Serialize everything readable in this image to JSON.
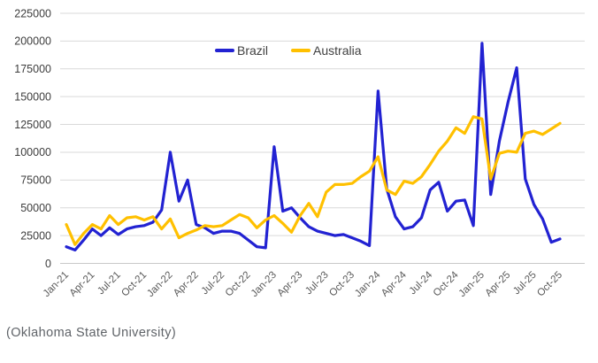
{
  "caption": "(Oklahoma State University)",
  "chart_data": {
    "type": "line",
    "title": "",
    "xlabel": "",
    "ylabel": "",
    "ylim": [
      0,
      225000
    ],
    "ytick_step": 25000,
    "grid": true,
    "legend_position": "top-center",
    "x_tick_every": 3,
    "x": [
      "Jan-21",
      "Feb-21",
      "Mar-21",
      "Apr-21",
      "May-21",
      "Jun-21",
      "Jul-21",
      "Aug-21",
      "Sep-21",
      "Oct-21",
      "Nov-21",
      "Dec-21",
      "Jan-22",
      "Feb-22",
      "Mar-22",
      "Apr-22",
      "May-22",
      "Jun-22",
      "Jul-22",
      "Aug-22",
      "Sep-22",
      "Oct-22",
      "Nov-22",
      "Dec-22",
      "Jan-23",
      "Feb-23",
      "Mar-23",
      "Apr-23",
      "May-23",
      "Jun-23",
      "Jul-23",
      "Aug-23",
      "Sep-23",
      "Oct-23",
      "Nov-23",
      "Dec-23",
      "Jan-24",
      "Feb-24",
      "Mar-24",
      "Apr-24",
      "May-24",
      "Jun-24",
      "Jul-24",
      "Aug-24",
      "Sep-24",
      "Oct-24",
      "Nov-24",
      "Dec-24",
      "Jan-25",
      "Feb-25",
      "Mar-25",
      "Apr-25",
      "May-25",
      "Jun-25",
      "Jul-25",
      "Aug-25",
      "Sep-25",
      "Oct-25"
    ],
    "series": [
      {
        "name": "Brazil",
        "color": "#2222d2",
        "values": [
          15000,
          12000,
          21000,
          31000,
          25000,
          32000,
          26000,
          31000,
          33000,
          34000,
          37000,
          48000,
          100000,
          56000,
          75000,
          35000,
          32000,
          27000,
          29000,
          29000,
          27000,
          21000,
          15000,
          14000,
          105000,
          47000,
          50000,
          41000,
          33000,
          29000,
          27000,
          25000,
          26000,
          23000,
          20000,
          16000,
          155000,
          67000,
          42000,
          31000,
          33000,
          41000,
          66000,
          73000,
          47000,
          56000,
          57000,
          34000,
          198000,
          62000,
          110000,
          145000,
          176000,
          76000,
          53000,
          40000,
          19000,
          22000
        ]
      },
      {
        "name": "Australia",
        "color": "#ffc000",
        "values": [
          35000,
          17000,
          27000,
          35000,
          31000,
          43000,
          35000,
          41000,
          42000,
          39000,
          42000,
          31000,
          40000,
          23000,
          27000,
          30000,
          34000,
          33000,
          34000,
          39000,
          44000,
          41000,
          32000,
          39000,
          43000,
          36000,
          28000,
          43000,
          54000,
          42000,
          64000,
          71000,
          71000,
          72000,
          78000,
          83000,
          96000,
          66000,
          62000,
          74000,
          72000,
          78000,
          89000,
          101000,
          110000,
          122000,
          117000,
          132000,
          130000,
          76000,
          99000,
          101000,
          100000,
          117000,
          119000,
          116000,
          121000,
          126000
        ]
      }
    ],
    "style": {
      "gridline_color": "#d9d9d9",
      "axis_line_color": "#c9c9c9",
      "y_tick_label_color": "#3d3d3d",
      "x_tick_label_color": "#595959",
      "line_width": 3.2
    }
  }
}
